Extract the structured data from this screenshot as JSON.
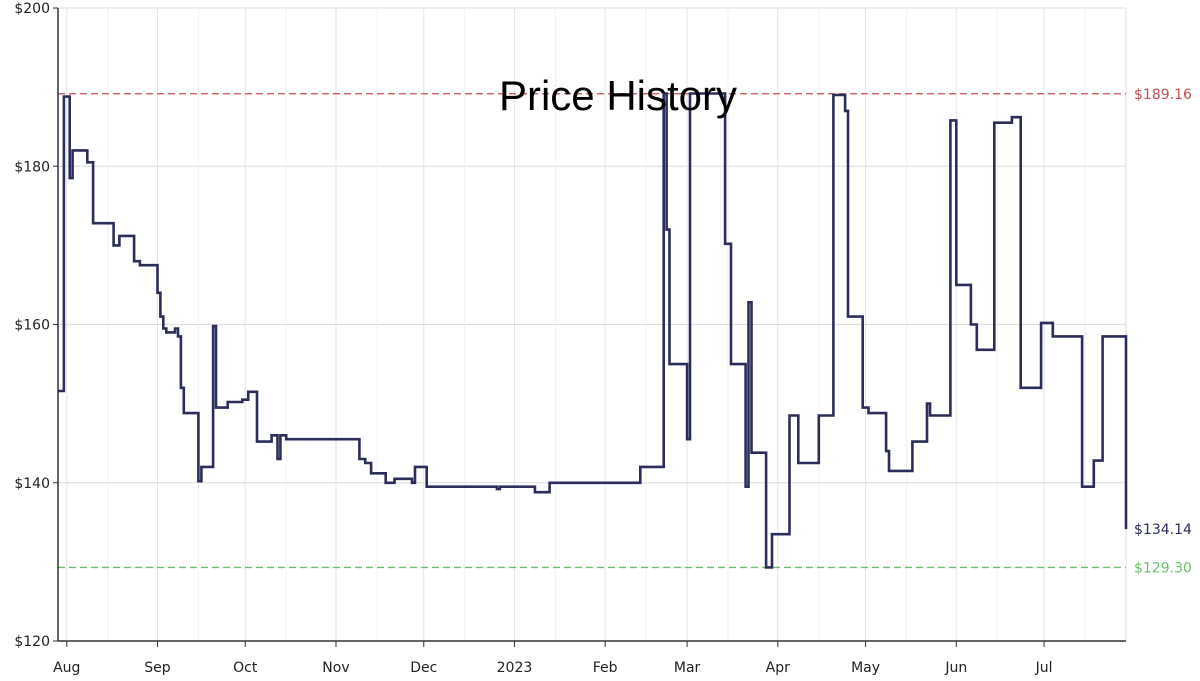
{
  "chart_data": {
    "type": "line",
    "title": "Price History",
    "xlabel": "",
    "ylabel": "",
    "ylim": [
      120,
      200
    ],
    "xlim": [
      "2022-07-29",
      "2023-07-29"
    ],
    "y_ticks": [
      {
        "value": 120,
        "label": "$120"
      },
      {
        "value": 140,
        "label": "$140"
      },
      {
        "value": 160,
        "label": "$160"
      },
      {
        "value": 180,
        "label": "$180"
      },
      {
        "value": 200,
        "label": "$200"
      }
    ],
    "x_ticks": [
      {
        "date": "2022-08-01",
        "label": "Aug"
      },
      {
        "date": "2022-09-01",
        "label": "Sep"
      },
      {
        "date": "2022-10-01",
        "label": "Oct"
      },
      {
        "date": "2022-11-01",
        "label": "Nov"
      },
      {
        "date": "2022-12-01",
        "label": "Dec"
      },
      {
        "date": "2023-01-01",
        "label": "2023"
      },
      {
        "date": "2023-02-01",
        "label": "Feb"
      },
      {
        "date": "2023-03-01",
        "label": "Mar"
      },
      {
        "date": "2023-04-01",
        "label": "Apr"
      },
      {
        "date": "2023-05-01",
        "label": "May"
      },
      {
        "date": "2023-06-01",
        "label": "Jun"
      },
      {
        "date": "2023-07-01",
        "label": "Jul"
      }
    ],
    "grid": true,
    "step": true,
    "reference_lines": [
      {
        "value": 189.16,
        "label": "$189.16",
        "color": "#c0504d"
      },
      {
        "value": 129.3,
        "label": "$129.30",
        "color": "#6cbf6c"
      }
    ],
    "current_label": {
      "value": 134.14,
      "label": "$134.14",
      "color": "#2b2d5a"
    },
    "series": [
      {
        "color": "#2b2d5a",
        "points": [
          [
            "2022-07-29",
            151.6
          ],
          [
            "2022-07-31",
            188.8
          ],
          [
            "2022-08-02",
            178.5
          ],
          [
            "2022-08-03",
            182.0
          ],
          [
            "2022-08-08",
            180.5
          ],
          [
            "2022-08-10",
            172.8
          ],
          [
            "2022-08-17",
            170.0
          ],
          [
            "2022-08-19",
            171.2
          ],
          [
            "2022-08-24",
            168.0
          ],
          [
            "2022-08-26",
            167.5
          ],
          [
            "2022-09-01",
            164.0
          ],
          [
            "2022-09-02",
            161.0
          ],
          [
            "2022-09-03",
            159.5
          ],
          [
            "2022-09-04",
            159.0
          ],
          [
            "2022-09-07",
            159.5
          ],
          [
            "2022-09-08",
            158.5
          ],
          [
            "2022-09-09",
            152.0
          ],
          [
            "2022-09-10",
            148.8
          ],
          [
            "2022-09-15",
            140.2
          ],
          [
            "2022-09-16",
            142.0
          ],
          [
            "2022-09-20",
            159.8
          ],
          [
            "2022-09-21",
            149.5
          ],
          [
            "2022-09-25",
            150.2
          ],
          [
            "2022-09-30",
            150.5
          ],
          [
            "2022-10-02",
            151.5
          ],
          [
            "2022-10-05",
            145.2
          ],
          [
            "2022-10-10",
            146.0
          ],
          [
            "2022-10-12",
            143.0
          ],
          [
            "2022-10-13",
            146.0
          ],
          [
            "2022-10-15",
            145.5
          ],
          [
            "2022-11-09",
            143.0
          ],
          [
            "2022-11-11",
            142.5
          ],
          [
            "2022-11-13",
            141.2
          ],
          [
            "2022-11-18",
            140.0
          ],
          [
            "2022-11-21",
            140.5
          ],
          [
            "2022-11-27",
            140.0
          ],
          [
            "2022-11-28",
            142.0
          ],
          [
            "2022-12-02",
            139.5
          ],
          [
            "2022-12-26",
            139.2
          ],
          [
            "2022-12-27",
            139.5
          ],
          [
            "2023-01-08",
            138.8
          ],
          [
            "2023-01-13",
            140.0
          ],
          [
            "2023-02-13",
            142.0
          ],
          [
            "2023-02-21",
            189.2
          ],
          [
            "2023-02-22",
            172.0
          ],
          [
            "2023-02-23",
            155.0
          ],
          [
            "2023-03-01",
            145.5
          ],
          [
            "2023-03-02",
            189.2
          ],
          [
            "2023-03-14",
            170.2
          ],
          [
            "2023-03-16",
            155.0
          ],
          [
            "2023-03-21",
            139.5
          ],
          [
            "2023-03-22",
            162.8
          ],
          [
            "2023-03-23",
            143.8
          ],
          [
            "2023-03-28",
            129.3
          ],
          [
            "2023-03-30",
            133.5
          ],
          [
            "2023-04-05",
            148.5
          ],
          [
            "2023-04-08",
            142.5
          ],
          [
            "2023-04-15",
            148.5
          ],
          [
            "2023-04-20",
            189.0
          ],
          [
            "2023-04-24",
            187.0
          ],
          [
            "2023-04-25",
            161.0
          ],
          [
            "2023-04-30",
            149.5
          ],
          [
            "2023-05-02",
            148.8
          ],
          [
            "2023-05-08",
            144.0
          ],
          [
            "2023-05-09",
            141.5
          ],
          [
            "2023-05-17",
            145.2
          ],
          [
            "2023-05-22",
            150.0
          ],
          [
            "2023-05-23",
            148.5
          ],
          [
            "2023-05-30",
            185.8
          ],
          [
            "2023-06-01",
            165.0
          ],
          [
            "2023-06-06",
            160.0
          ],
          [
            "2023-06-08",
            156.8
          ],
          [
            "2023-06-14",
            185.5
          ],
          [
            "2023-06-20",
            186.2
          ],
          [
            "2023-06-23",
            152.0
          ],
          [
            "2023-06-30",
            160.2
          ],
          [
            "2023-07-04",
            158.5
          ],
          [
            "2023-07-14",
            139.5
          ],
          [
            "2023-07-18",
            142.8
          ],
          [
            "2023-07-21",
            158.5
          ],
          [
            "2023-07-29",
            134.14
          ]
        ]
      }
    ]
  }
}
